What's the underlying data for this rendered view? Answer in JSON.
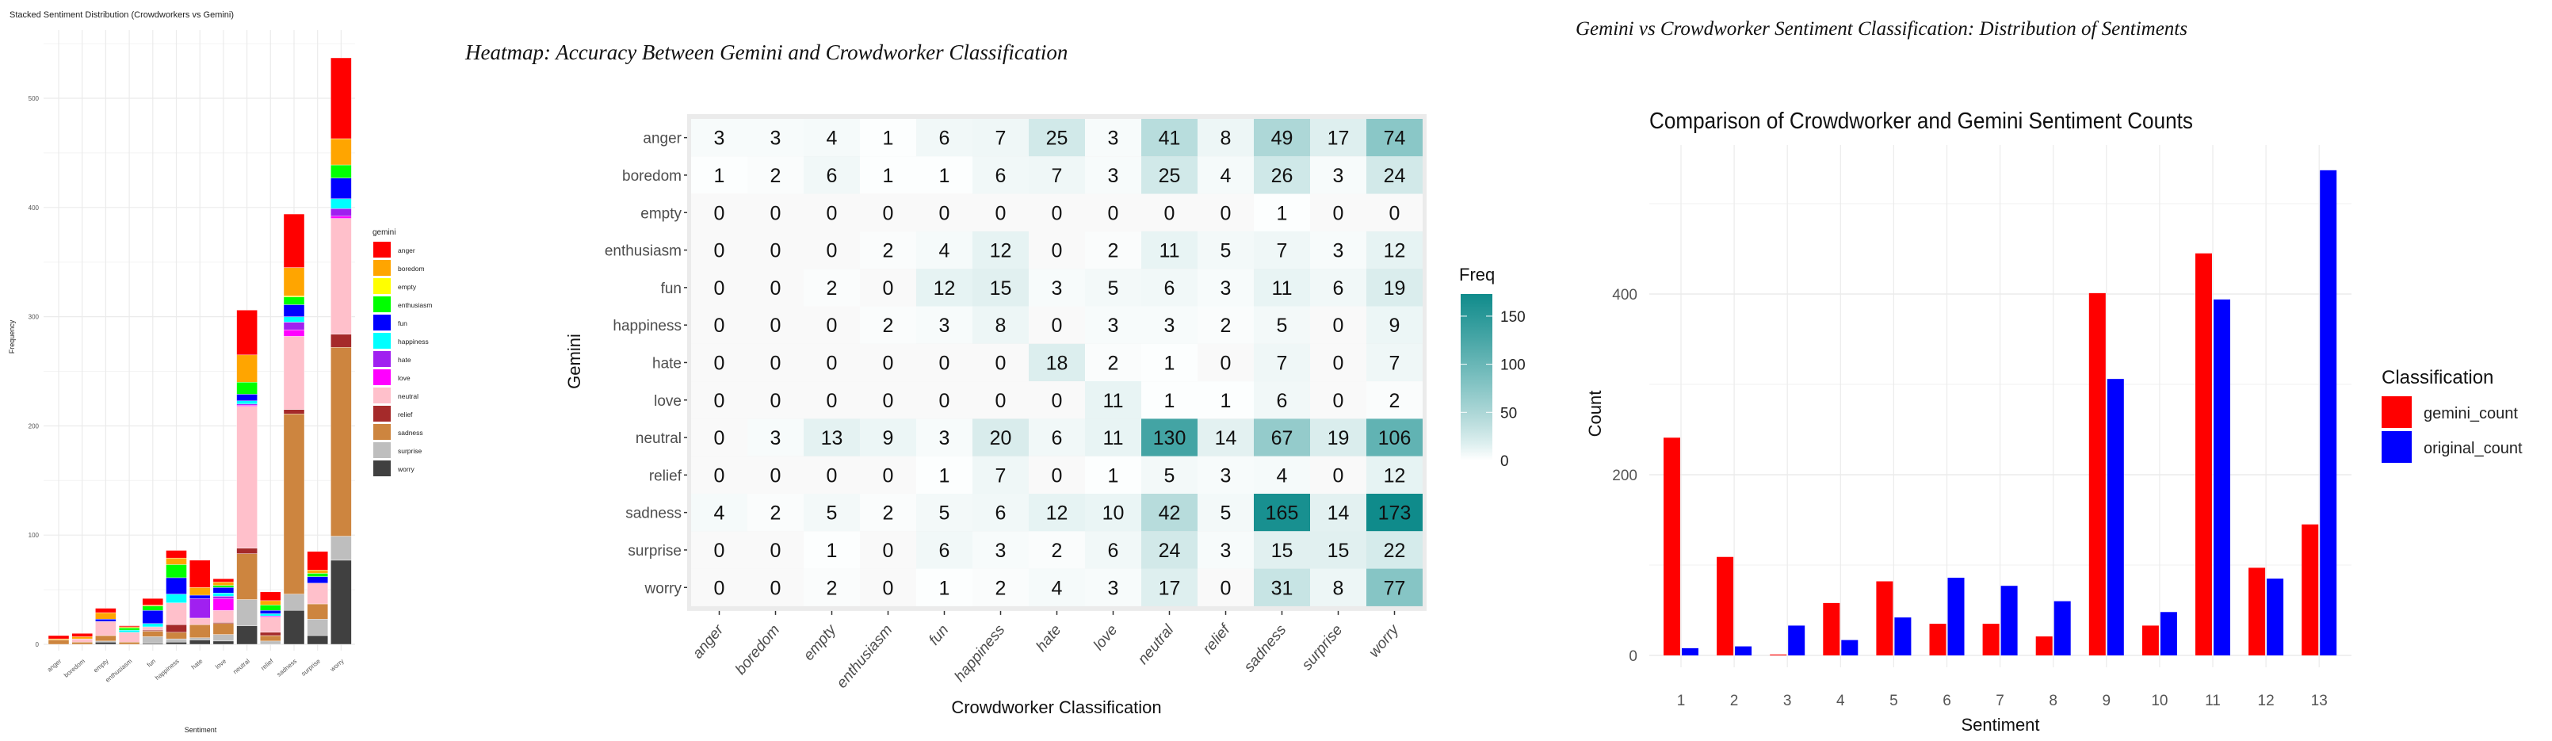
{
  "chart_data": [
    {
      "type": "bar",
      "stacked": true,
      "title": "Stacked Sentiment Distribution (Crowdworkers vs Gemini)",
      "xlabel": "Sentiment",
      "ylabel": "Frequency",
      "categories": [
        "anger",
        "boredom",
        "empty",
        "enthusiasm",
        "fun",
        "happiness",
        "hate",
        "love",
        "neutral",
        "relief",
        "sadness",
        "surprise",
        "worry"
      ],
      "ylim": [
        0,
        560
      ],
      "yticks": [
        0,
        100,
        200,
        300,
        400,
        500
      ],
      "grid": true,
      "legend": {
        "title": "gemini",
        "position": "right"
      },
      "series": [
        {
          "name": "anger",
          "color": "#FF0000",
          "values": [
            3,
            3,
            4,
            1,
            6,
            7,
            25,
            3,
            41,
            8,
            49,
            17,
            74
          ]
        },
        {
          "name": "boredom",
          "color": "#FFA500",
          "values": [
            1,
            2,
            6,
            1,
            1,
            6,
            7,
            3,
            25,
            4,
            26,
            3,
            24
          ]
        },
        {
          "name": "empty",
          "color": "#FFFF00",
          "values": [
            0,
            0,
            0,
            0,
            0,
            0,
            0,
            0,
            0,
            0,
            1,
            0,
            0
          ]
        },
        {
          "name": "enthusiasm",
          "color": "#00FF00",
          "values": [
            0,
            0,
            0,
            2,
            4,
            12,
            0,
            2,
            11,
            5,
            7,
            3,
            12
          ]
        },
        {
          "name": "fun",
          "color": "#0000FF",
          "values": [
            0,
            0,
            2,
            0,
            12,
            15,
            3,
            5,
            6,
            3,
            11,
            6,
            19
          ]
        },
        {
          "name": "happiness",
          "color": "#00FFFF",
          "values": [
            0,
            0,
            0,
            2,
            3,
            8,
            0,
            3,
            3,
            2,
            5,
            0,
            9
          ]
        },
        {
          "name": "hate",
          "color": "#A020F0",
          "values": [
            0,
            0,
            0,
            0,
            0,
            0,
            18,
            2,
            1,
            0,
            7,
            0,
            7
          ]
        },
        {
          "name": "love",
          "color": "#FF00FF",
          "values": [
            0,
            0,
            0,
            0,
            0,
            0,
            0,
            11,
            1,
            1,
            6,
            0,
            2
          ]
        },
        {
          "name": "neutral",
          "color": "#FFC0CB",
          "values": [
            0,
            3,
            13,
            9,
            3,
            20,
            6,
            11,
            130,
            14,
            67,
            19,
            106
          ]
        },
        {
          "name": "relief",
          "color": "#A52A2A",
          "values": [
            0,
            0,
            0,
            0,
            1,
            7,
            0,
            1,
            5,
            3,
            4,
            0,
            12
          ]
        },
        {
          "name": "sadness",
          "color": "#CD853F",
          "values": [
            4,
            2,
            5,
            2,
            5,
            6,
            12,
            10,
            42,
            5,
            165,
            14,
            173
          ]
        },
        {
          "name": "surprise",
          "color": "#BEBEBE",
          "values": [
            0,
            0,
            1,
            0,
            6,
            3,
            2,
            6,
            24,
            3,
            15,
            15,
            22
          ]
        },
        {
          "name": "worry",
          "color": "#404040",
          "values": [
            0,
            0,
            2,
            0,
            1,
            2,
            4,
            3,
            17,
            0,
            31,
            8,
            77
          ]
        }
      ]
    },
    {
      "type": "heatmap",
      "title": "Heatmap: Accuracy Between Gemini and Crowdworker Classification",
      "xlabel": "Crowdworker Classification",
      "ylabel": "Gemini",
      "x_categories": [
        "anger",
        "boredom",
        "empty",
        "enthusiasm",
        "fun",
        "happiness",
        "hate",
        "love",
        "neutral",
        "relief",
        "sadness",
        "surprise",
        "worry"
      ],
      "y_categories": [
        "anger",
        "boredom",
        "empty",
        "enthusiasm",
        "fun",
        "happiness",
        "hate",
        "love",
        "neutral",
        "relief",
        "sadness",
        "surprise",
        "worry"
      ],
      "values": [
        [
          3,
          3,
          4,
          1,
          6,
          7,
          25,
          3,
          41,
          8,
          49,
          17,
          74
        ],
        [
          1,
          2,
          6,
          1,
          1,
          6,
          7,
          3,
          25,
          4,
          26,
          3,
          24
        ],
        [
          0,
          0,
          0,
          0,
          0,
          0,
          0,
          0,
          0,
          0,
          1,
          0,
          0
        ],
        [
          0,
          0,
          0,
          2,
          4,
          12,
          0,
          2,
          11,
          5,
          7,
          3,
          12
        ],
        [
          0,
          0,
          2,
          0,
          12,
          15,
          3,
          5,
          6,
          3,
          11,
          6,
          19
        ],
        [
          0,
          0,
          0,
          2,
          3,
          8,
          0,
          3,
          3,
          2,
          5,
          0,
          9
        ],
        [
          0,
          0,
          0,
          0,
          0,
          0,
          18,
          2,
          1,
          0,
          7,
          0,
          7
        ],
        [
          0,
          0,
          0,
          0,
          0,
          0,
          0,
          11,
          1,
          1,
          6,
          0,
          2
        ],
        [
          0,
          3,
          13,
          9,
          3,
          20,
          6,
          11,
          130,
          14,
          67,
          19,
          106
        ],
        [
          0,
          0,
          0,
          0,
          1,
          7,
          0,
          1,
          5,
          3,
          4,
          0,
          12
        ],
        [
          4,
          2,
          5,
          2,
          5,
          6,
          12,
          10,
          42,
          5,
          165,
          14,
          173
        ],
        [
          0,
          0,
          1,
          0,
          6,
          3,
          2,
          6,
          24,
          3,
          15,
          15,
          22
        ],
        [
          0,
          0,
          2,
          0,
          1,
          2,
          4,
          3,
          17,
          0,
          31,
          8,
          77
        ]
      ],
      "legend": {
        "title": "Freq",
        "position": "right",
        "ticks": [
          0,
          50,
          100,
          150
        ],
        "range": [
          0,
          173
        ],
        "low_color": "#FFFFFF",
        "high_color": "#0F8B8B"
      }
    },
    {
      "type": "bar",
      "header": "Gemini vs Crowdworker Sentiment Classification: Distribution of Sentiments",
      "title": "Comparison of Crowdworker and Gemini Sentiment Counts",
      "xlabel": "Sentiment",
      "ylabel": "Count",
      "categories": [
        "1",
        "2",
        "3",
        "4",
        "5",
        "6",
        "7",
        "8",
        "9",
        "10",
        "11",
        "12",
        "13"
      ],
      "ylim": [
        0,
        560
      ],
      "yticks": [
        0,
        200,
        400
      ],
      "grid": true,
      "legend": {
        "title": "Classification",
        "position": "right"
      },
      "series": [
        {
          "name": "gemini_count",
          "color": "#FF0000",
          "values": [
            241,
            109,
            1,
            58,
            82,
            35,
            35,
            21,
            401,
            33,
            445,
            97,
            145
          ]
        },
        {
          "name": "original_count",
          "color": "#0000FF",
          "values": [
            8,
            10,
            33,
            17,
            42,
            86,
            77,
            60,
            306,
            48,
            394,
            85,
            537
          ]
        }
      ]
    }
  ]
}
